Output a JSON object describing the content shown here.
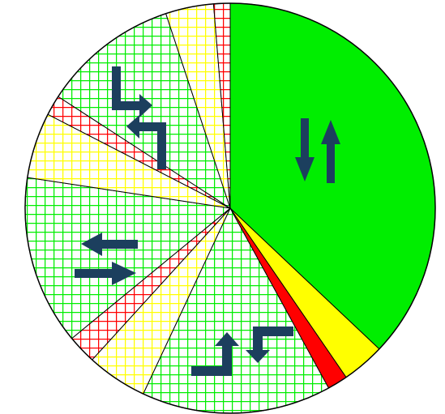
{
  "chart_data": {
    "type": "pie",
    "title": "",
    "slices": [
      {
        "value": 37.2,
        "fill": "solid",
        "color": "#00ee00",
        "group": "through"
      },
      {
        "value": 3.4,
        "fill": "solid",
        "color": "#ffff00",
        "group": "through"
      },
      {
        "value": 1.6,
        "fill": "solid",
        "color": "#ff0000",
        "group": "through"
      },
      {
        "value": 15.0,
        "fill": "hatch",
        "color": "#00ee00",
        "group": "right-turn"
      },
      {
        "value": 4.8,
        "fill": "hatch",
        "color": "#ffff00",
        "group": "right-turn"
      },
      {
        "value": 2.3,
        "fill": "hatch",
        "color": "#ff0000",
        "group": "right-turn"
      },
      {
        "value": 13.4,
        "fill": "hatch",
        "color": "#00ee00",
        "group": "cross"
      },
      {
        "value": 5.2,
        "fill": "hatch",
        "color": "#ffff00",
        "group": "left-turn"
      },
      {
        "value": 1.6,
        "fill": "hatch",
        "color": "#ff0000",
        "group": "left-turn"
      },
      {
        "value": 10.8,
        "fill": "hatch",
        "color": "#00ee00",
        "group": "left-turn"
      },
      {
        "value": 3.8,
        "fill": "hatch",
        "color": "#ffff00",
        "group": "left-turn"
      },
      {
        "value": 1.3,
        "fill": "hatch",
        "color": "#ff0000",
        "group": "left-turn"
      }
    ],
    "icons": [
      {
        "name": "two-way-vertical-arrows-icon",
        "group": "through"
      },
      {
        "name": "offset-turn-arrows-icon",
        "group": "right-turn"
      },
      {
        "name": "two-way-horizontal-arrows-icon",
        "group": "cross"
      },
      {
        "name": "staggered-turn-arrows-icon",
        "group": "left-turn"
      }
    ],
    "colors": {
      "green": "#00ee00",
      "yellow": "#ffff00",
      "red": "#ff0000",
      "arrow": "#1c3f5e",
      "outline": "#000000"
    }
  }
}
